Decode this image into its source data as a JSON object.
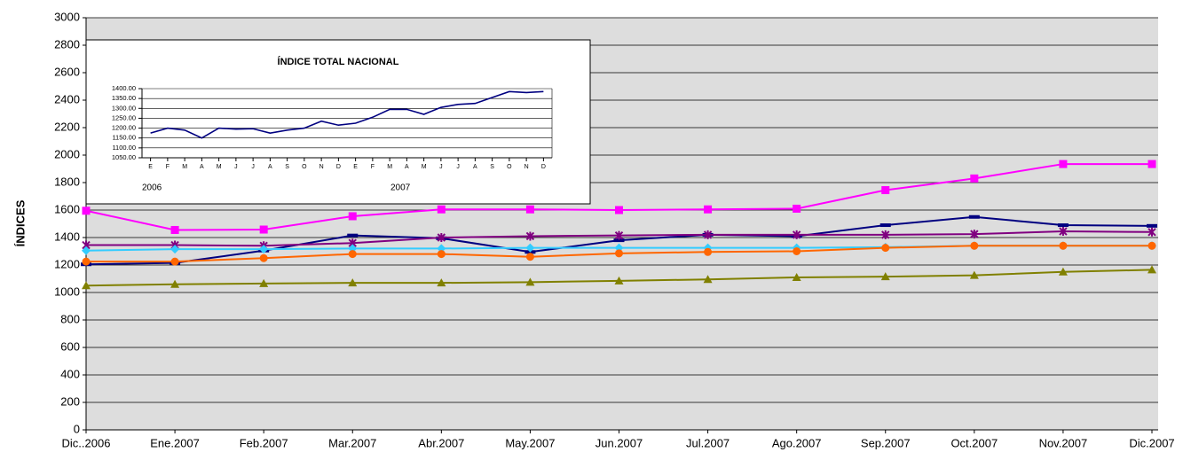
{
  "chart_data": [
    {
      "type": "line",
      "y_label": "ÍNDICES",
      "categories": [
        "Dic..2006",
        "Ene.2007",
        "Feb.2007",
        "Mar.2007",
        "Abr.2007",
        "May.2007",
        "Jun.2007",
        "Jul.2007",
        "Ago.2007",
        "Sep.2007",
        "Oct.2007",
        "Nov.2007",
        "Dic.2007"
      ],
      "ylim": [
        0,
        3000
      ],
      "yticks": [
        0,
        200,
        400,
        600,
        800,
        1000,
        1200,
        1400,
        1600,
        1800,
        2000,
        2200,
        2400,
        2600,
        2800,
        3000
      ],
      "grid": true,
      "series": [
        {
          "color": "#ff00ff",
          "marker": "square",
          "values": [
            1595,
            1455,
            1458,
            1555,
            1605,
            1605,
            1600,
            1605,
            1610,
            1745,
            1830,
            1935,
            1935
          ]
        },
        {
          "color": "#000080",
          "marker": "dash",
          "values": [
            1205,
            1215,
            1305,
            1415,
            1395,
            1295,
            1380,
            1420,
            1410,
            1490,
            1550,
            1490,
            1485
          ]
        },
        {
          "color": "#800080",
          "marker": "asterisk",
          "values": [
            1345,
            1345,
            1340,
            1360,
            1400,
            1410,
            1415,
            1420,
            1420,
            1420,
            1425,
            1445,
            1440
          ]
        },
        {
          "color": "#33ccff",
          "marker": "diamond",
          "values": [
            1305,
            1315,
            1315,
            1320,
            1320,
            1325,
            1325,
            1325,
            1325,
            1330,
            1340,
            1340,
            1340
          ]
        },
        {
          "color": "#ff6600",
          "marker": "circle",
          "values": [
            1225,
            1225,
            1250,
            1280,
            1280,
            1260,
            1285,
            1295,
            1300,
            1325,
            1340,
            1340,
            1340
          ]
        },
        {
          "color": "#808000",
          "marker": "triangle",
          "values": [
            1050,
            1060,
            1065,
            1070,
            1070,
            1075,
            1085,
            1095,
            1110,
            1115,
            1125,
            1150,
            1165
          ]
        }
      ]
    },
    {
      "type": "line",
      "title": "ÍNDICE TOTAL NACIONAL",
      "categories": [
        "E",
        "F",
        "M",
        "A",
        "M",
        "J",
        "J",
        "A",
        "S",
        "O",
        "N",
        "D",
        "E",
        "F",
        "M",
        "A",
        "M",
        "J",
        "J",
        "A",
        "S",
        "O",
        "N",
        "D"
      ],
      "annotations": [
        "2006",
        "2007"
      ],
      "ylim": [
        1050,
        1400
      ],
      "yticks": [
        {
          "value": 1050,
          "label": "1050.00"
        },
        {
          "value": 1100,
          "label": "1100.00"
        },
        {
          "value": 1150,
          "label": "1150.00"
        },
        {
          "value": 1200,
          "label": "1200.00"
        },
        {
          "value": 1250,
          "label": "1250.00"
        },
        {
          "value": 1300,
          "label": "1300.00"
        },
        {
          "value": 1350,
          "label": "1350.00"
        },
        {
          "value": 1400,
          "label": "1400.00"
        }
      ],
      "grid": true,
      "series": [
        {
          "color": "#000080",
          "marker": "none",
          "values": [
            1175,
            1200,
            1190,
            1150,
            1200,
            1195,
            1197,
            1175,
            1190,
            1200,
            1235,
            1215,
            1225,
            1255,
            1295,
            1295,
            1270,
            1305,
            1320,
            1325,
            1355,
            1385,
            1380,
            1385
          ]
        }
      ]
    }
  ]
}
